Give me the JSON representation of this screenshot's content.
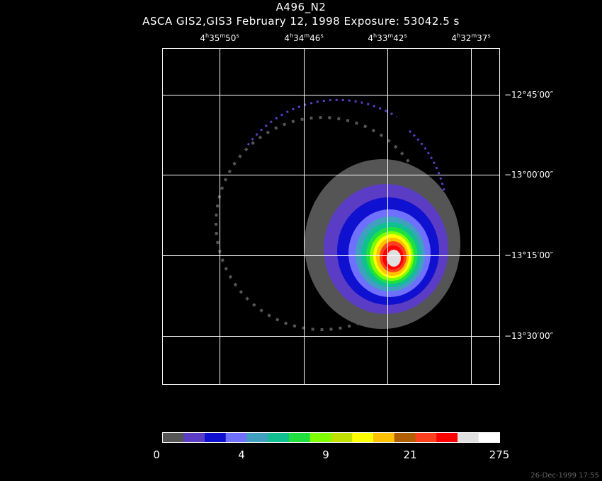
{
  "header": {
    "title": "A496_N2",
    "subtitle": "ASCA GIS2,GIS3 February 12, 1998 Exposure: 53042.5 s"
  },
  "chart_data": {
    "type": "heatmap",
    "title": "A496_N2",
    "subtitle": "ASCA GIS2,GIS3 February 12, 1998 Exposure: 53042.5 s",
    "x_axis": {
      "type": "right-ascension",
      "ticks": [
        {
          "h": "4",
          "m": "35",
          "s": "50"
        },
        {
          "h": "4",
          "m": "34",
          "s": "46"
        },
        {
          "h": "4",
          "m": "33",
          "s": "42"
        },
        {
          "h": "4",
          "m": "32",
          "s": "37"
        }
      ]
    },
    "y_axis": {
      "type": "declination",
      "ticks": [
        "−12°45′00″",
        "−13°00′00″",
        "−13°15′00″",
        "−13°30′00″"
      ]
    },
    "grid": true,
    "colorbar": {
      "labels": [
        "0",
        "4",
        "9",
        "21",
        "275"
      ],
      "colors": [
        "#555555",
        "#5b3cc4",
        "#1010d0",
        "#7070ff",
        "#3fa0c0",
        "#10c090",
        "#20e040",
        "#80ff00",
        "#c0e000",
        "#ffff00",
        "#ffc000",
        "#b06000",
        "#ff4020",
        "#ff0000",
        "#e0e0e0",
        "#ffffff"
      ]
    },
    "source": {
      "peak_ra": "4h33m42s",
      "peak_dec": "−13°15′"
    }
  },
  "footer": {
    "timestamp": "26-Dec-1999 17:55"
  }
}
